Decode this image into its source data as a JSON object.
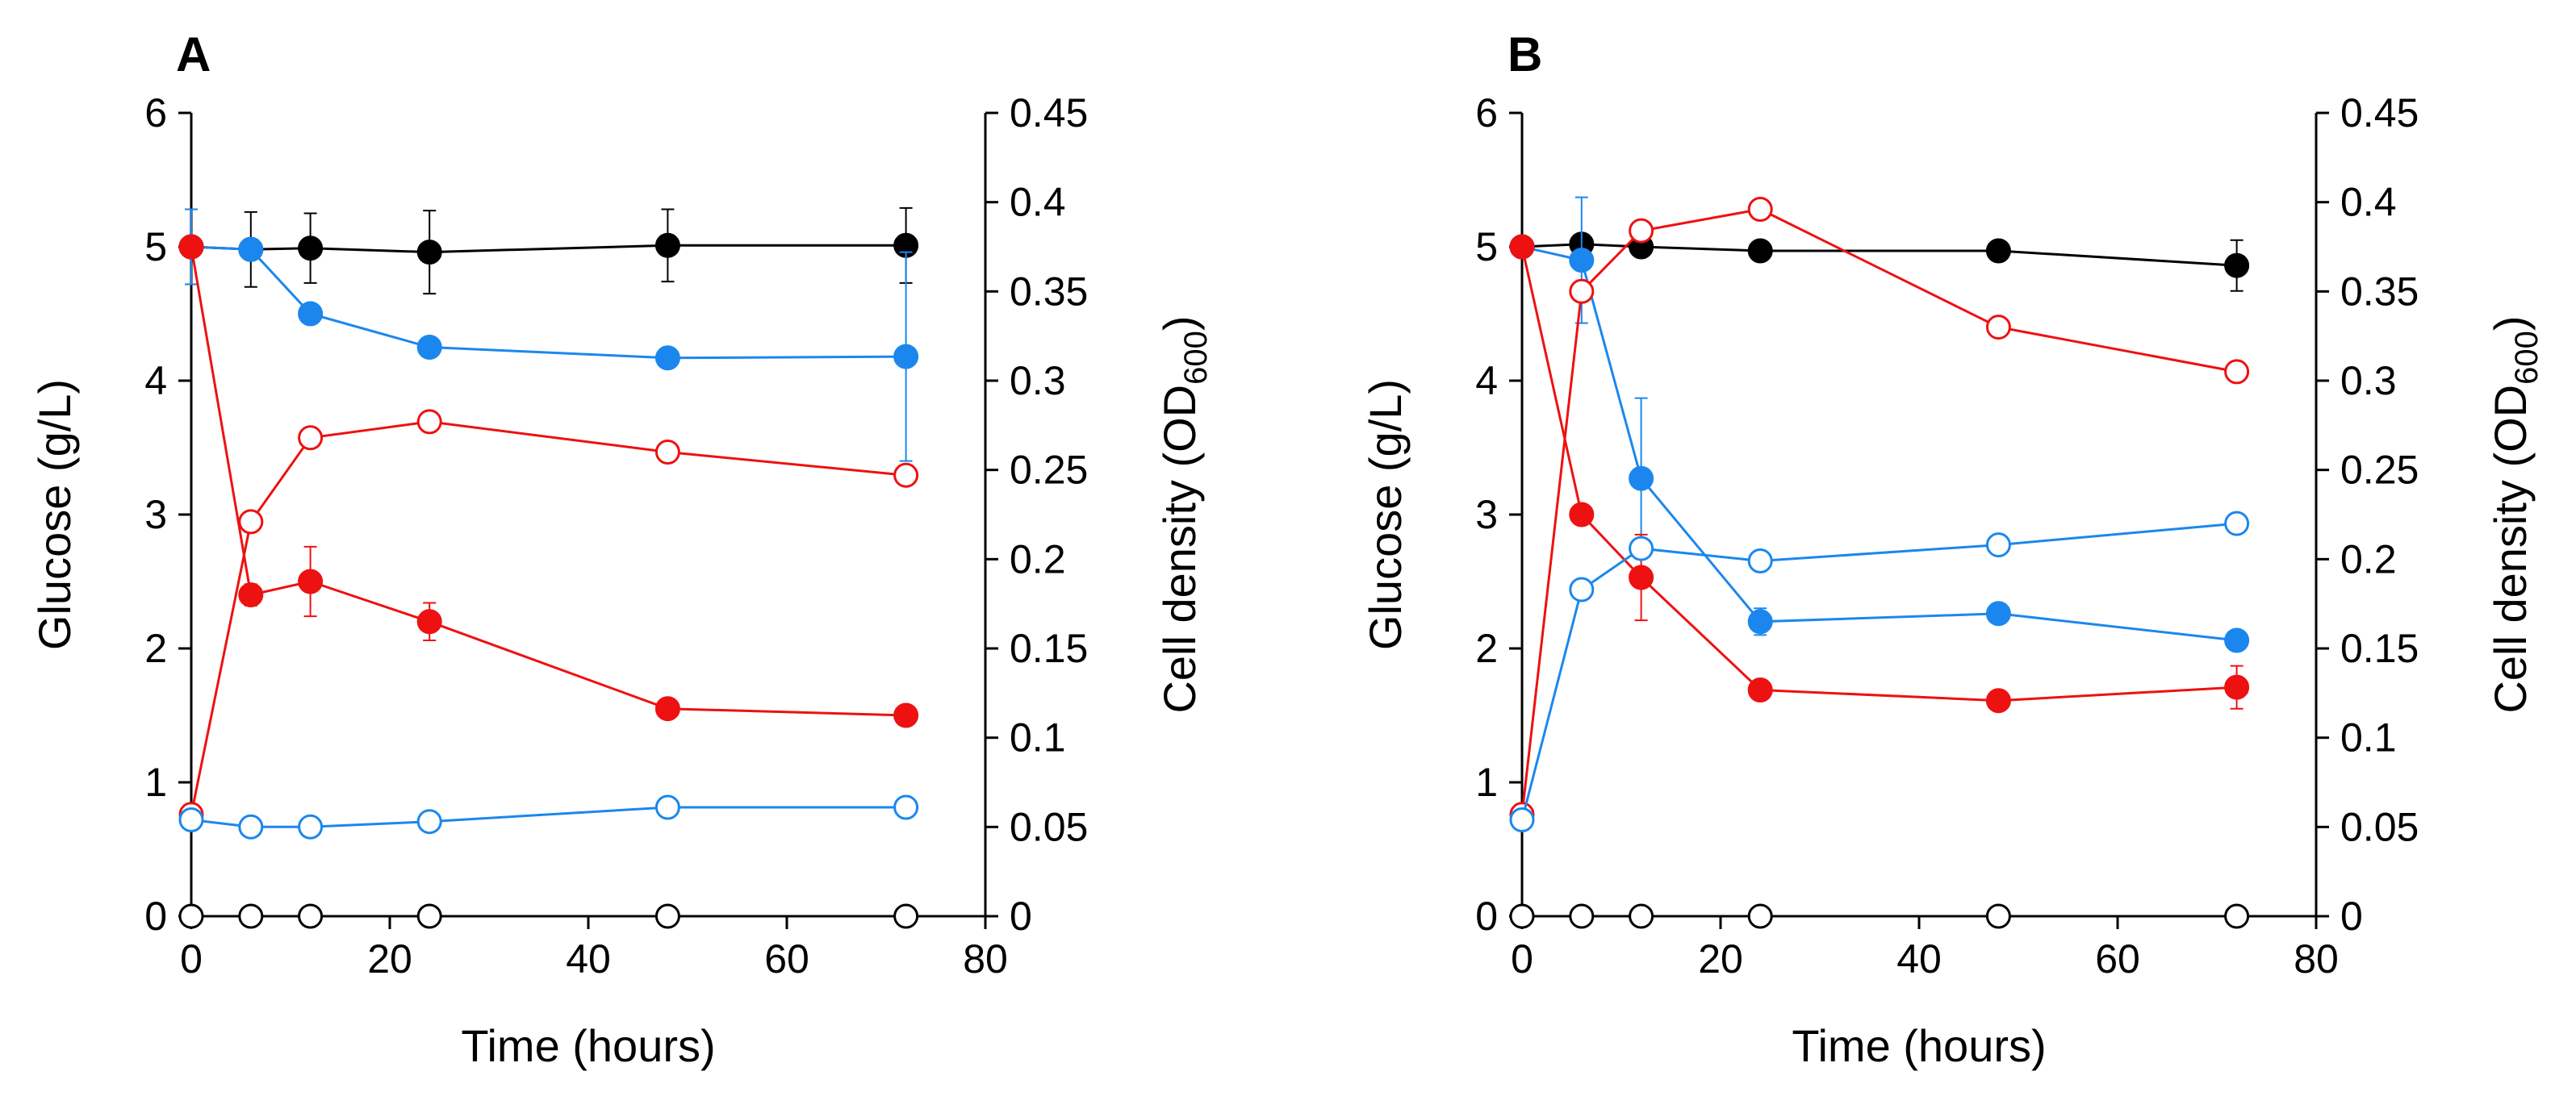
{
  "chart_data": [
    {
      "type": "line",
      "panel": "A",
      "xlabel": "Time (hours)",
      "ylabel": "Glucose (g/L)",
      "y2label": "Cell density (OD",
      "y2label_sub": "600",
      "y2label_close": ")",
      "xlim": [
        0,
        80
      ],
      "ylim": [
        0,
        6
      ],
      "y2lim": [
        0,
        0.45
      ],
      "x_ticks": [
        "0",
        "20",
        "40",
        "60",
        "80"
      ],
      "y_ticks": [
        "0",
        "1",
        "2",
        "3",
        "4",
        "5",
        "6"
      ],
      "y2_ticks": [
        "0",
        "0.05",
        "0.1",
        "0.15",
        "0.2",
        "0.25",
        "0.3",
        "0.35",
        "0.4",
        "0.45"
      ],
      "x": [
        0,
        6,
        12,
        24,
        48,
        72
      ],
      "series": [
        {
          "name": "glucose-black",
          "axis": "left",
          "color": "#000000",
          "filled": true,
          "values": [
            5.0,
            4.98,
            4.99,
            4.96,
            5.01,
            5.01
          ],
          "errors": [
            0.28,
            0.28,
            0.26,
            0.31,
            0.27,
            0.28
          ]
        },
        {
          "name": "glucose-blue",
          "axis": "left",
          "color": "#1b87ee",
          "filled": true,
          "values": [
            5.0,
            4.98,
            4.5,
            4.25,
            4.17,
            4.18
          ],
          "errors": [
            0.28,
            0.0,
            0.0,
            0.07,
            0.0,
            0.78
          ]
        },
        {
          "name": "glucose-red",
          "axis": "left",
          "color": "#ee1111",
          "filled": true,
          "values": [
            5.0,
            2.4,
            2.5,
            2.2,
            1.55,
            1.5
          ],
          "errors": [
            0.0,
            0.08,
            0.26,
            0.14,
            0.0,
            0.0
          ]
        },
        {
          "name": "od-red",
          "axis": "right",
          "color": "#ee1111",
          "filled": false,
          "values": [
            0.057,
            0.221,
            0.268,
            0.277,
            0.26,
            0.247
          ],
          "errors": [
            0,
            0,
            0,
            0,
            0,
            0
          ]
        },
        {
          "name": "od-blue",
          "axis": "right",
          "color": "#1b87ee",
          "filled": false,
          "values": [
            0.054,
            0.05,
            0.05,
            0.053,
            0.061,
            0.061
          ],
          "errors": [
            0,
            0,
            0,
            0,
            0,
            0
          ]
        },
        {
          "name": "od-black",
          "axis": "right",
          "color": "#000000",
          "filled": false,
          "values": [
            0.0,
            0.0,
            0.0,
            0.0,
            0.0,
            0.0
          ],
          "errors": [
            0,
            0,
            0,
            0,
            0,
            0
          ]
        }
      ]
    },
    {
      "type": "line",
      "panel": "B",
      "xlabel": "Time (hours)",
      "ylabel": "Glucose (g/L)",
      "y2label": "Cell density (OD",
      "y2label_sub": "600",
      "y2label_close": ")",
      "xlim": [
        0,
        80
      ],
      "ylim": [
        0,
        6
      ],
      "y2lim": [
        0,
        0.45
      ],
      "x_ticks": [
        "0",
        "20",
        "40",
        "60",
        "80"
      ],
      "y_ticks": [
        "0",
        "1",
        "2",
        "3",
        "4",
        "5",
        "6"
      ],
      "y2_ticks": [
        "0",
        "0.05",
        "0.1",
        "0.15",
        "0.2",
        "0.25",
        "0.3",
        "0.35",
        "0.4",
        "0.45"
      ],
      "x": [
        0,
        6,
        12,
        24,
        48,
        72
      ],
      "series": [
        {
          "name": "glucose-black",
          "axis": "left",
          "color": "#000000",
          "filled": true,
          "values": [
            5.0,
            5.02,
            5.0,
            4.97,
            4.97,
            4.86
          ],
          "errors": [
            0.0,
            0.0,
            0.0,
            0.0,
            0.0,
            0.19
          ]
        },
        {
          "name": "glucose-blue",
          "axis": "left",
          "color": "#1b87ee",
          "filled": true,
          "values": [
            5.0,
            4.9,
            3.27,
            2.2,
            2.26,
            2.06
          ],
          "errors": [
            0.0,
            0.47,
            0.6,
            0.1,
            0.07,
            0.0
          ]
        },
        {
          "name": "glucose-red",
          "axis": "left",
          "color": "#ee1111",
          "filled": true,
          "values": [
            5.0,
            3.0,
            2.53,
            1.69,
            1.61,
            1.71
          ],
          "errors": [
            0.0,
            0.0,
            0.32,
            0.0,
            0.0,
            0.16
          ]
        },
        {
          "name": "od-red",
          "axis": "right",
          "color": "#ee1111",
          "filled": false,
          "values": [
            0.057,
            0.35,
            0.384,
            0.396,
            0.33,
            0.305
          ],
          "errors": [
            0,
            0,
            0,
            0,
            0,
            0
          ]
        },
        {
          "name": "od-blue",
          "axis": "right",
          "color": "#1b87ee",
          "filled": false,
          "values": [
            0.054,
            0.183,
            0.206,
            0.199,
            0.208,
            0.22
          ],
          "errors": [
            0,
            0,
            0,
            0,
            0,
            0
          ]
        },
        {
          "name": "od-black",
          "axis": "right",
          "color": "#000000",
          "filled": false,
          "values": [
            0.0,
            0.0,
            0.0,
            0.0,
            0.0,
            0.0
          ],
          "errors": [
            0,
            0,
            0,
            0,
            0,
            0
          ]
        }
      ]
    }
  ]
}
